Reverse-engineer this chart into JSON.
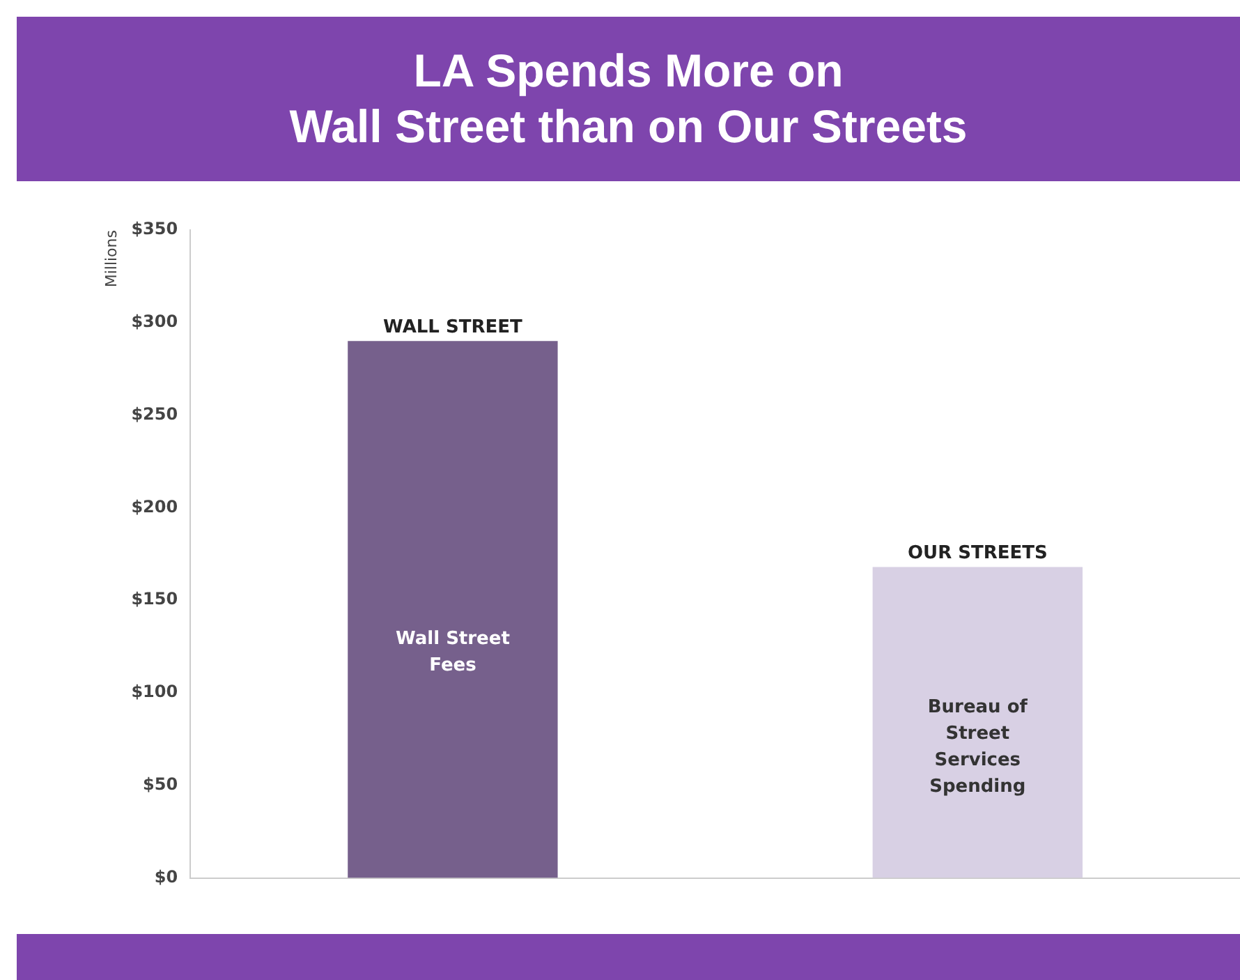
{
  "chart_data": {
    "type": "bar",
    "title": "LA Spends More on\nWall Street than on Our Streets",
    "ylabel": "Millions",
    "categories": [
      "WALL STREET",
      "OUR STREETS"
    ],
    "values": [
      290,
      168
    ],
    "colors": [
      "#76608c",
      "#d8d0e4"
    ],
    "ylim": [
      0,
      350
    ],
    "yticks": [
      {
        "value": 0,
        "label": "$0"
      },
      {
        "value": 50,
        "label": "$50"
      },
      {
        "value": 100,
        "label": "$100"
      },
      {
        "value": 150,
        "label": "$150"
      },
      {
        "value": 200,
        "label": "$200"
      },
      {
        "value": 250,
        "label": "$250"
      },
      {
        "value": 300,
        "label": "$300"
      },
      {
        "value": 350,
        "label": "$350"
      }
    ],
    "annotations": [
      "Wall Street Fees",
      "Bureau of Street Services Spending"
    ],
    "grid": false,
    "legend": false
  }
}
